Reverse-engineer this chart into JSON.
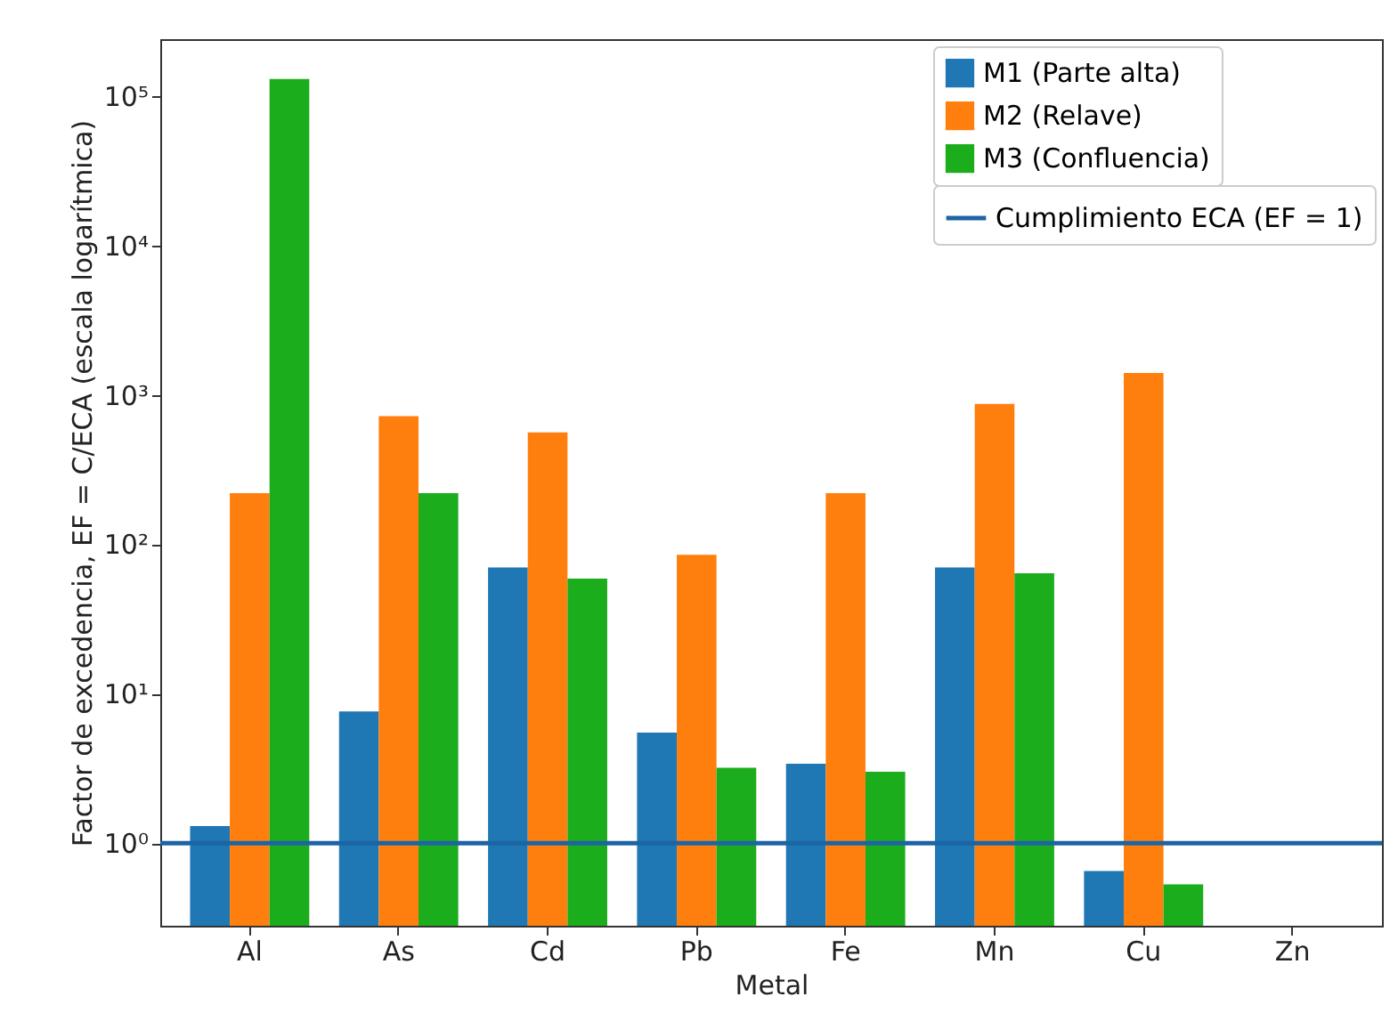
{
  "chart_data": {
    "type": "bar",
    "xlabel": "Metal",
    "ylabel": "Factor de excedencia, EF = C/ECA (escala logarítmica)",
    "categories": [
      "Al",
      "As",
      "Cd",
      "Pb",
      "Fe",
      "Mn",
      "Cu",
      "Zn"
    ],
    "series": [
      {
        "name": "M1 (Parte alta)",
        "color": "#1f77b4",
        "values": [
          1.3,
          7.6,
          70,
          5.5,
          3.4,
          70,
          0.65,
          null
        ]
      },
      {
        "name": "M2 (Relave)",
        "color": "#ff7f0e",
        "values": [
          220,
          720,
          560,
          85,
          220,
          870,
          1400,
          null
        ]
      },
      {
        "name": "M3 (Confluencia)",
        "color": "#1cad1c",
        "values": [
          130000,
          220,
          59,
          3.2,
          3.0,
          64,
          0.53,
          null
        ]
      }
    ],
    "log": "y",
    "ylim": [
      0.28,
      240000
    ],
    "yticks": [
      {
        "value": 1,
        "label": "10⁰"
      },
      {
        "value": 10,
        "label": "10¹"
      },
      {
        "value": 100,
        "label": "10²"
      },
      {
        "value": 1000,
        "label": "10³"
      },
      {
        "value": 10000,
        "label": "10⁴"
      },
      {
        "value": 100000,
        "label": "10⁵"
      }
    ],
    "ref_lines": [
      {
        "axis": "y",
        "value": 1,
        "label": "Cumplimiento ECA (EF = 1)",
        "color": "#1c64a4"
      }
    ],
    "legend": "top right",
    "grid": false
  }
}
